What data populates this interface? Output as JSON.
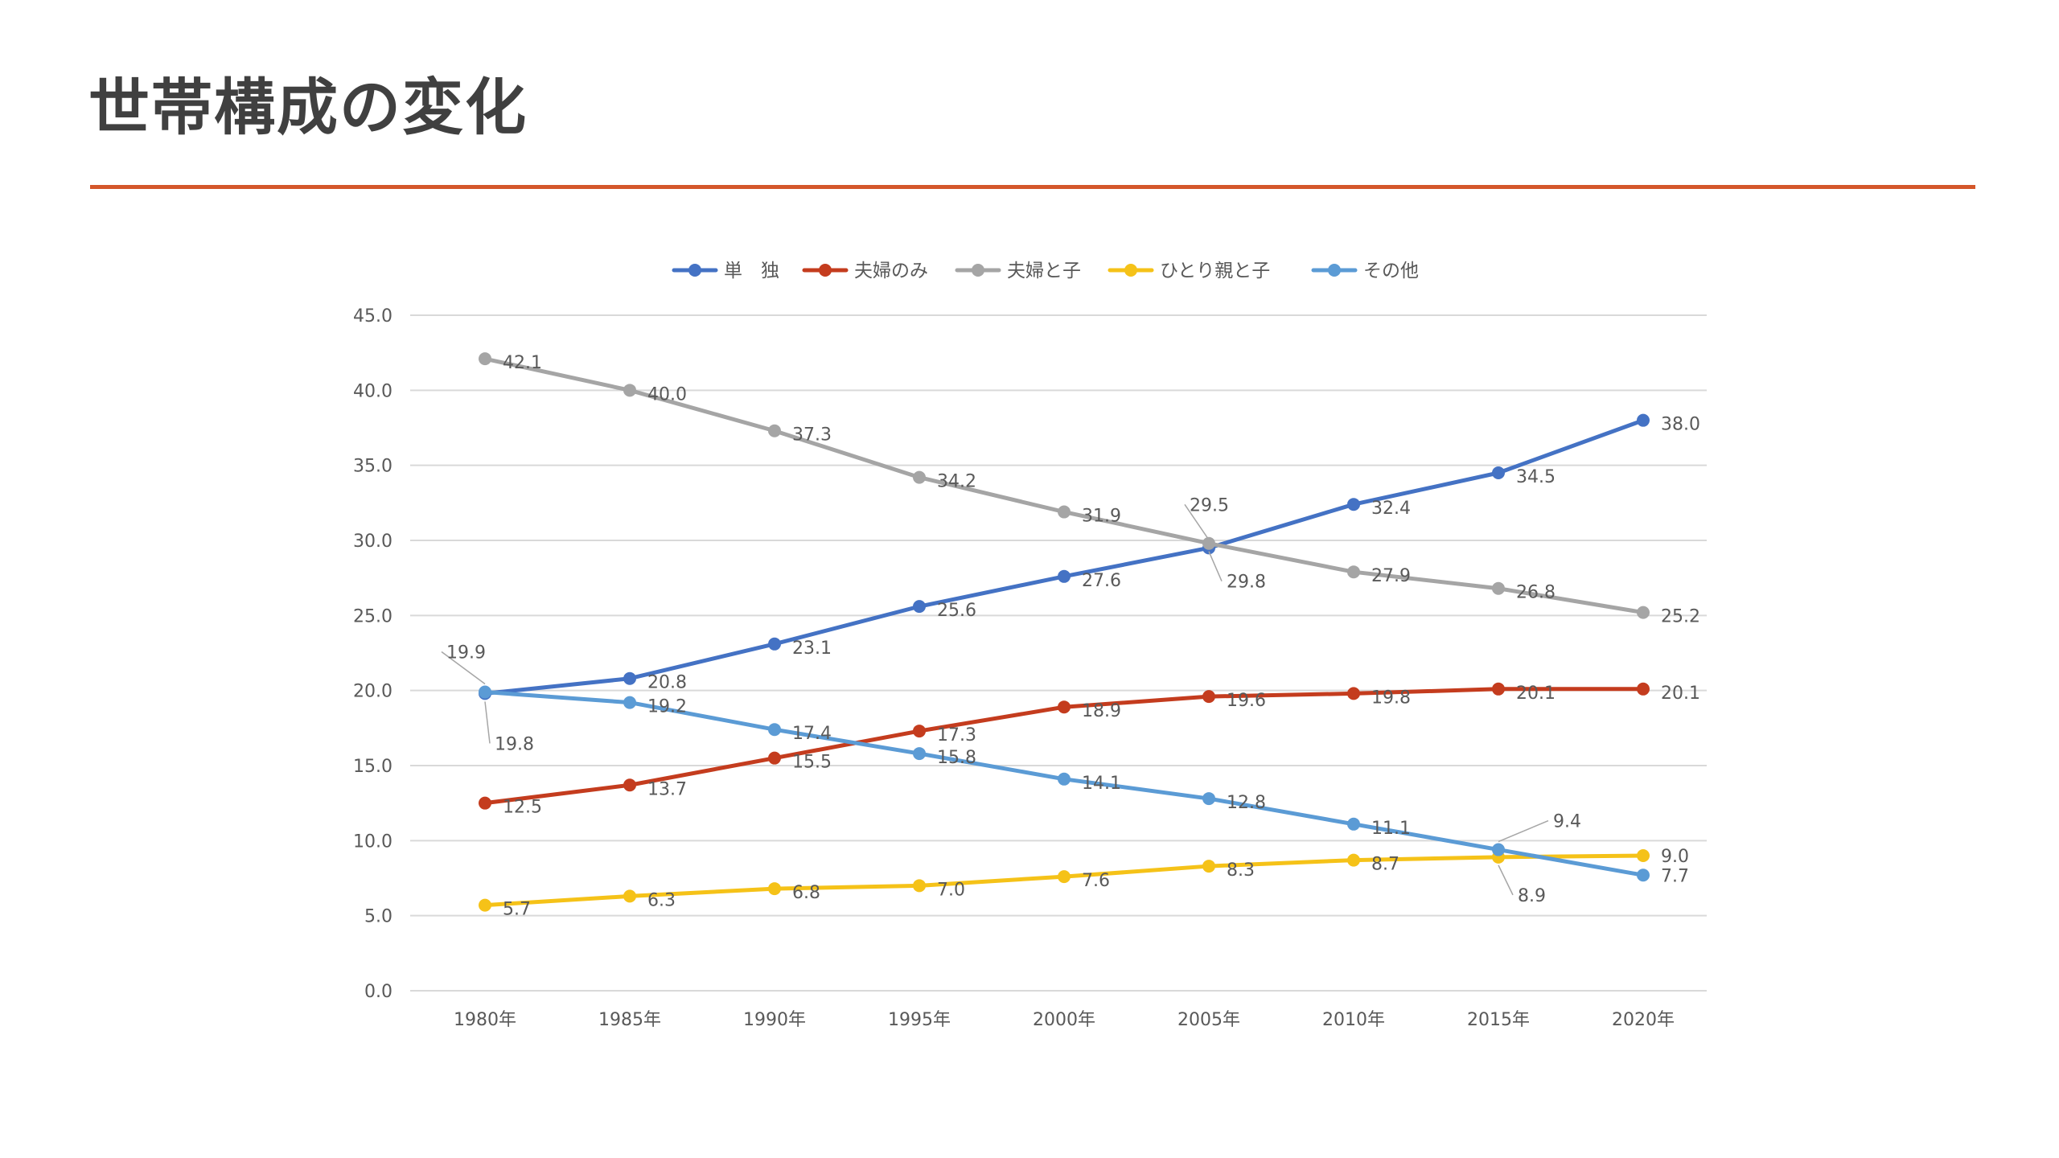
{
  "title": "世帯構成の変化",
  "colors": {
    "title_rule": "#D4572A",
    "gridline": "#D9D9D9",
    "text": "#595959"
  },
  "chart_data": {
    "type": "line",
    "title": "",
    "xlabel": "",
    "ylabel": "",
    "categories": [
      "1980年",
      "1985年",
      "1990年",
      "1995年",
      "2000年",
      "2005年",
      "2010年",
      "2015年",
      "2020年"
    ],
    "ylim": [
      0,
      45
    ],
    "yticks": [
      "0.0",
      "5.0",
      "10.0",
      "15.0",
      "20.0",
      "25.0",
      "30.0",
      "35.0",
      "40.0",
      "45.0"
    ],
    "grid": true,
    "legend_position": "top",
    "series": [
      {
        "name": "単　独",
        "color": "#4472C4",
        "values": [
          19.8,
          20.8,
          23.1,
          25.6,
          27.6,
          29.5,
          32.4,
          34.5,
          38.0
        ],
        "labels": [
          "19.8",
          "20.8",
          "23.1",
          "25.6",
          "27.6",
          "29.5",
          "32.4",
          "34.5",
          "38.0"
        ]
      },
      {
        "name": "夫婦のみ",
        "color": "#C43C1E",
        "values": [
          12.5,
          13.7,
          15.5,
          17.3,
          18.9,
          19.6,
          19.8,
          20.1,
          20.1
        ],
        "labels": [
          "12.5",
          "13.7",
          "15.5",
          "17.3",
          "18.9",
          "19.6",
          "19.8",
          "20.1",
          "20.1"
        ]
      },
      {
        "name": "夫婦と子",
        "color": "#A5A5A5",
        "values": [
          42.1,
          40.0,
          37.3,
          34.2,
          31.9,
          29.8,
          27.9,
          26.8,
          25.2
        ],
        "labels": [
          "42.1",
          "40.0",
          "37.3",
          "34.2",
          "31.9",
          "29.8",
          "27.9",
          "26.8",
          "25.2"
        ]
      },
      {
        "name": "ひとり親と子",
        "color": "#F5C218",
        "values": [
          5.7,
          6.3,
          6.8,
          7.0,
          7.6,
          8.3,
          8.7,
          8.9,
          9.0
        ],
        "labels": [
          "5.7",
          "6.3",
          "6.8",
          "7.0",
          "7.6",
          "8.3",
          "8.7",
          "8.9",
          "9.0"
        ]
      },
      {
        "name": "その他",
        "color": "#5B9BD5",
        "values": [
          19.9,
          19.2,
          17.4,
          15.8,
          14.1,
          12.8,
          11.1,
          9.4,
          7.7
        ],
        "labels": [
          "19.9",
          "19.2",
          "17.4",
          "15.8",
          "14.1",
          "12.8",
          "11.1",
          "9.4",
          "7.7"
        ]
      }
    ]
  }
}
